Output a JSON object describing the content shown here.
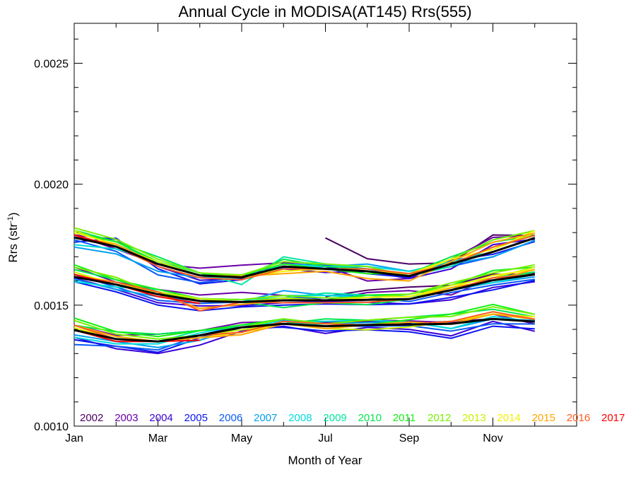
{
  "chart_data": {
    "type": "line",
    "title": "Annual Cycle in MODISA(AT145) Rrs(555)",
    "xlabel": "Month of Year",
    "ylabel": "Rrs (str",
    "ylabel_sup": "-1",
    "ylabel_close": ")",
    "x_ticks": [
      {
        "month": 1,
        "label": "Jan"
      },
      {
        "month": 3,
        "label": "Mar"
      },
      {
        "month": 5,
        "label": "May"
      },
      {
        "month": 7,
        "label": "Jul"
      },
      {
        "month": 9,
        "label": "Sep"
      },
      {
        "month": 11,
        "label": "Nov"
      }
    ],
    "y_ticks": [
      {
        "value": 0.001,
        "label": "0.0010"
      },
      {
        "value": 0.0015,
        "label": "0.0015"
      },
      {
        "value": 0.002,
        "label": "0.0020"
      },
      {
        "value": 0.0025,
        "label": "0.0025"
      }
    ],
    "xlim": [
      1,
      13
    ],
    "ylim": [
      0.001,
      0.002665
    ],
    "months": [
      1,
      2,
      3,
      4,
      5,
      6,
      7,
      8,
      9,
      10,
      11,
      12
    ],
    "groups": [
      {
        "name": "upper",
        "mean": [
          0.00178,
          0.001742,
          0.00167,
          0.001623,
          0.001615,
          0.00166,
          0.00165,
          0.00164,
          0.00162,
          0.00167,
          0.00172,
          0.001778
        ]
      },
      {
        "name": "middle",
        "mean": [
          0.001617,
          0.001585,
          0.001545,
          0.001517,
          0.001513,
          0.00152,
          0.00152,
          0.001522,
          0.001525,
          0.001562,
          0.001603,
          0.001627
        ]
      },
      {
        "name": "lower",
        "mean": [
          0.001397,
          0.00136,
          0.00135,
          0.001375,
          0.001408,
          0.001423,
          0.001413,
          0.001418,
          0.00142,
          0.001423,
          0.001443,
          0.001432
        ]
      }
    ],
    "series": [
      {
        "name": "2002",
        "color": "#4b0066",
        "start_month": 7,
        "offsets": [
          [
            0,
            0,
            0,
            0,
            0,
            0,
            0.000128,
            5.2e-05,
            5e-05,
            5e-06,
            7e-05,
            1e-05
          ],
          [
            0,
            0,
            0,
            0,
            0,
            0,
            1.5e-05,
            4e-05,
            5e-05,
            2e-05,
            2.5e-05,
            0.0
          ],
          [
            0,
            0,
            0,
            0,
            0,
            0,
            1e-05,
            1.5e-05,
            5e-06,
            1e-05,
            0.0,
            5e-06
          ]
        ]
      },
      {
        "name": "2003",
        "color": "#6a00a8",
        "offsets": [
          [
            1e-05,
            -1e-05,
            0.0,
            3e-05,
            5e-05,
            1.5e-05,
            1e-05,
            -4e-05,
            -1e-05,
            2e-05,
            6e-05,
            1e-05
          ],
          [
            4e-05,
            1e-05,
            2e-05,
            2.5e-05,
            4e-05,
            2e-05,
            0.0,
            3e-05,
            3.5e-05,
            -2e-05,
            1e-05,
            5e-06
          ],
          [
            2e-05,
            1.5e-05,
            3e-05,
            2e-05,
            2e-05,
            1e-05,
            1.5e-05,
            2e-05,
            1.5e-05,
            5e-06,
            2e-05,
            -1e-05
          ]
        ]
      },
      {
        "name": "2004",
        "color": "#3a00d6",
        "offsets": [
          [
            1e-05,
            3e-05,
            -1e-05,
            -2e-05,
            -5e-06,
            -1e-05,
            -1.5e-05,
            0.0,
            -1e-05,
            -2e-05,
            3e-05,
            -5e-06
          ],
          [
            -5e-06,
            -2e-05,
            -3.5e-05,
            -2e-05,
            -1.5e-05,
            -1e-05,
            -5e-06,
            -1e-05,
            -2e-05,
            -4e-05,
            -3e-05,
            -3e-05
          ],
          [
            -3e-05,
            -4e-05,
            -5e-05,
            -4e-05,
            -1.5e-05,
            -1e-05,
            -3e-05,
            -1e-05,
            -2e-05,
            -5e-05,
            -1e-05,
            -4e-05
          ]
        ]
      },
      {
        "name": "2005",
        "color": "#0a14f0",
        "offsets": [
          [
            -2e-05,
            3.5e-05,
            -2e-05,
            -3.5e-05,
            -1e-05,
            -5e-06,
            1e-05,
            -1e-05,
            -5e-06,
            1.5e-05,
            -1e-05,
            -1.5e-05
          ],
          [
            -2e-05,
            -3e-05,
            -4.5e-05,
            -4e-05,
            -2e-05,
            -2e-05,
            -1.5e-05,
            -2e-05,
            -2e-05,
            -3e-05,
            -4e-05,
            -2.5e-05
          ],
          [
            -4e-05,
            -3e-05,
            -4.5e-05,
            -1e-05,
            0.0,
            -1.5e-05,
            -2e-05,
            -2e-05,
            -3e-05,
            -6e-05,
            -3e-05,
            -3e-05
          ]
        ]
      },
      {
        "name": "2006",
        "color": "#0a5af5",
        "offsets": [
          [
            -1e-05,
            -2e-05,
            -4.5e-05,
            -3e-05,
            0.0,
            1e-05,
            1.5e-05,
            1e-05,
            0.0,
            -1e-05,
            -2e-05,
            -1e-05
          ],
          [
            1e-05,
            -1e-05,
            -2.5e-05,
            -1e-05,
            0.0,
            1e-05,
            1e-05,
            1e-05,
            -1e-05,
            -1e-05,
            -2e-05,
            -2e-05
          ],
          [
            -6e-05,
            -3e-05,
            -3.5e-05,
            0.0,
            1e-05,
            1e-05,
            0.0,
            -5e-06,
            -5e-06,
            -3e-05,
            -2e-05,
            -1e-05
          ]
        ]
      },
      {
        "name": "2007",
        "color": "#00a0f0",
        "offsets": [
          [
            -4e-05,
            -3e-05,
            -3e-05,
            -1e-05,
            1e-05,
            -1e-05,
            1e-05,
            3e-05,
            2e-05,
            0.0,
            -2e-05,
            -1e-05
          ],
          [
            -1e-05,
            -2e-05,
            -1e-05,
            0.0,
            0.0,
            4e-05,
            2e-05,
            2e-05,
            1e-05,
            0.0,
            -1e-05,
            -1e-05
          ],
          [
            -2e-05,
            -1e-05,
            -2.5e-05,
            -2e-05,
            0.0,
            1.5e-05,
            1e-05,
            1e-05,
            1e-05,
            -2e-05,
            0.0,
            5e-06
          ]
        ]
      },
      {
        "name": "2008",
        "color": "#00dcdc",
        "offsets": [
          [
            -3e-05,
            -1e-05,
            1e-05,
            0.0,
            -1e-05,
            1e-05,
            1e-05,
            2e-05,
            2e-05,
            1e-05,
            0.0,
            0.0
          ],
          [
            -2e-05,
            -1e-05,
            2e-05,
            1e-05,
            1e-05,
            2e-05,
            2e-05,
            1e-05,
            1e-05,
            1e-05,
            -1e-05,
            0.0
          ],
          [
            -3e-05,
            -2e-05,
            -1e-05,
            1e-05,
            1e-05,
            1e-05,
            2e-05,
            2e-05,
            1e-05,
            -2e-05,
            1e-05,
            0.0
          ]
        ]
      },
      {
        "name": "2009",
        "color": "#00e6a0",
        "offsets": [
          [
            2e-05,
            1e-05,
            1e-05,
            1e-05,
            -3e-05,
            4e-05,
            2e-05,
            2e-05,
            0.0,
            -1e-05,
            2e-05,
            1e-05
          ],
          [
            1e-05,
            0.0,
            0.0,
            1e-05,
            1e-05,
            1e-05,
            3e-05,
            2e-05,
            1e-05,
            0.0,
            1e-05,
            1e-05
          ],
          [
            1e-05,
            0.0,
            0.0,
            2e-05,
            1e-05,
            0.0,
            1e-05,
            0.0,
            0.0,
            1e-05,
            2e-05,
            1e-05
          ]
        ]
      },
      {
        "name": "2010",
        "color": "#00e650",
        "offsets": [
          [
            3e-05,
            2e-05,
            3e-05,
            1e-05,
            0.0,
            3e-05,
            1e-05,
            1e-05,
            1e-05,
            3e-05,
            4e-05,
            1e-05
          ],
          [
            3e-05,
            2e-05,
            1e-05,
            0.0,
            0.0,
            -3e-05,
            -1e-05,
            -2e-05,
            0.0,
            0.0,
            0.0,
            1e-05
          ],
          [
            2e-05,
            3e-05,
            3e-05,
            2e-05,
            0.0,
            0.0,
            3e-05,
            2e-05,
            3e-05,
            4e-05,
            4e-05,
            2e-05
          ]
        ]
      },
      {
        "name": "2011",
        "color": "#14f014",
        "offsets": [
          [
            2e-05,
            2e-05,
            1e-05,
            0.0,
            1e-05,
            1e-05,
            0.0,
            -1e-05,
            1e-05,
            2e-05,
            5e-05,
            3e-05
          ],
          [
            5e-05,
            2e-05,
            2e-05,
            1e-05,
            0.0,
            1e-05,
            0.0,
            2e-05,
            2e-05,
            2e-05,
            4e-05,
            3e-05
          ],
          [
            5e-05,
            3e-05,
            2e-05,
            2e-05,
            1e-05,
            2e-05,
            1e-05,
            0.0,
            2e-05,
            4e-05,
            6e-05,
            3e-05
          ]
        ]
      },
      {
        "name": "2012",
        "color": "#78f000",
        "offsets": [
          [
            4e-05,
            3e-05,
            2e-05,
            1e-05,
            1e-05,
            2e-05,
            2e-05,
            2e-05,
            0.0,
            2e-05,
            5e-05,
            3e-05
          ],
          [
            4e-05,
            3e-05,
            0.0,
            1e-05,
            1e-05,
            2e-05,
            1e-05,
            1e-05,
            2e-05,
            3e-05,
            3e-05,
            4e-05
          ],
          [
            4e-05,
            2e-05,
            1e-05,
            0.0,
            0.0,
            2e-05,
            1e-05,
            2e-05,
            3e-05,
            3e-05,
            5e-05,
            3e-05
          ]
        ]
      },
      {
        "name": "2013",
        "color": "#c8f000",
        "offsets": [
          [
            3e-05,
            0.0,
            1e-05,
            0.0,
            0.0,
            -1e-05,
            0.0,
            0.0,
            0.0,
            2e-05,
            1e-05,
            2e-05
          ],
          [
            2e-05,
            0.0,
            1e-05,
            1e-05,
            0.0,
            1e-05,
            0.0,
            1e-05,
            1e-05,
            2e-05,
            1e-05,
            3e-05
          ],
          [
            2e-05,
            1e-05,
            0.0,
            0.0,
            -1e-05,
            0.0,
            -1e-05,
            -2e-05,
            -1e-05,
            1e-05,
            2e-05,
            2e-05
          ]
        ]
      },
      {
        "name": "2014",
        "color": "#f5f000",
        "offsets": [
          [
            2e-05,
            1e-05,
            0.0,
            0.0,
            0.0,
            -2e-05,
            0.0,
            0.0,
            1e-05,
            2e-05,
            1e-05,
            3e-05
          ],
          [
            1e-05,
            1e-05,
            0.0,
            0.0,
            0.0,
            0.0,
            0.0,
            1e-05,
            1e-05,
            1e-05,
            2e-05,
            2e-05
          ],
          [
            1e-05,
            0.0,
            0.0,
            -1e-05,
            -2e-05,
            0.0,
            0.0,
            0.0,
            0.0,
            1e-05,
            2e-05,
            2e-05
          ]
        ]
      },
      {
        "name": "2015",
        "color": "#ffa500",
        "offsets": [
          [
            0.0,
            1e-05,
            0.0,
            0.0,
            5e-06,
            -3e-05,
            -1e-05,
            -3e-05,
            -2e-05,
            1e-05,
            4e-05,
            2e-05
          ],
          [
            0.0,
            0.0,
            0.0,
            -3e-05,
            -1e-05,
            0.0,
            0.0,
            0.0,
            0.0,
            1e-05,
            0.0,
            2e-05
          ],
          [
            2e-05,
            1e-05,
            0.0,
            -1e-05,
            -3e-05,
            0.0,
            -1e-05,
            0.0,
            1e-05,
            0.0,
            2e-05,
            1e-05
          ]
        ]
      },
      {
        "name": "2016",
        "color": "#ff5a1e",
        "offsets": [
          [
            1e-05,
            0.0,
            -1e-05,
            -1e-05,
            -1e-05,
            -1e-05,
            0.0,
            1e-05,
            1e-05,
            0.0,
            2e-05,
            1e-05
          ],
          [
            0.0,
            1e-05,
            1e-05,
            -4e-05,
            0.0,
            -1e-05,
            -1e-05,
            -1e-05,
            0.0,
            0.0,
            1e-05,
            0.0
          ],
          [
            2e-05,
            0.0,
            0.0,
            0.0,
            -2e-05,
            1e-05,
            1e-05,
            0.0,
            0.0,
            1e-05,
            3e-05,
            1e-05
          ]
        ]
      },
      {
        "name": "2017",
        "color": "#ff0000",
        "offsets": [
          [
            1e-05,
            0.0,
            0.0,
            0.0,
            0.0,
            0.0,
            0.0,
            0.0,
            0.0,
            0.0,
            0.0,
            0.0
          ],
          [
            1e-05,
            0.0,
            -1e-05,
            -1e-05,
            0.0,
            0.0,
            0.0,
            0.0,
            0.0,
            0.0,
            0.0,
            0.0
          ],
          [
            0.0,
            -1e-05,
            0.0,
            -2e-05,
            0.0,
            0.0,
            0.0,
            0.0,
            0.0,
            0.0,
            0.0,
            0.0
          ]
        ],
        "end_month": 4
      }
    ],
    "mean_color": "#000000",
    "grid": false,
    "legend_placement": "bottom"
  }
}
